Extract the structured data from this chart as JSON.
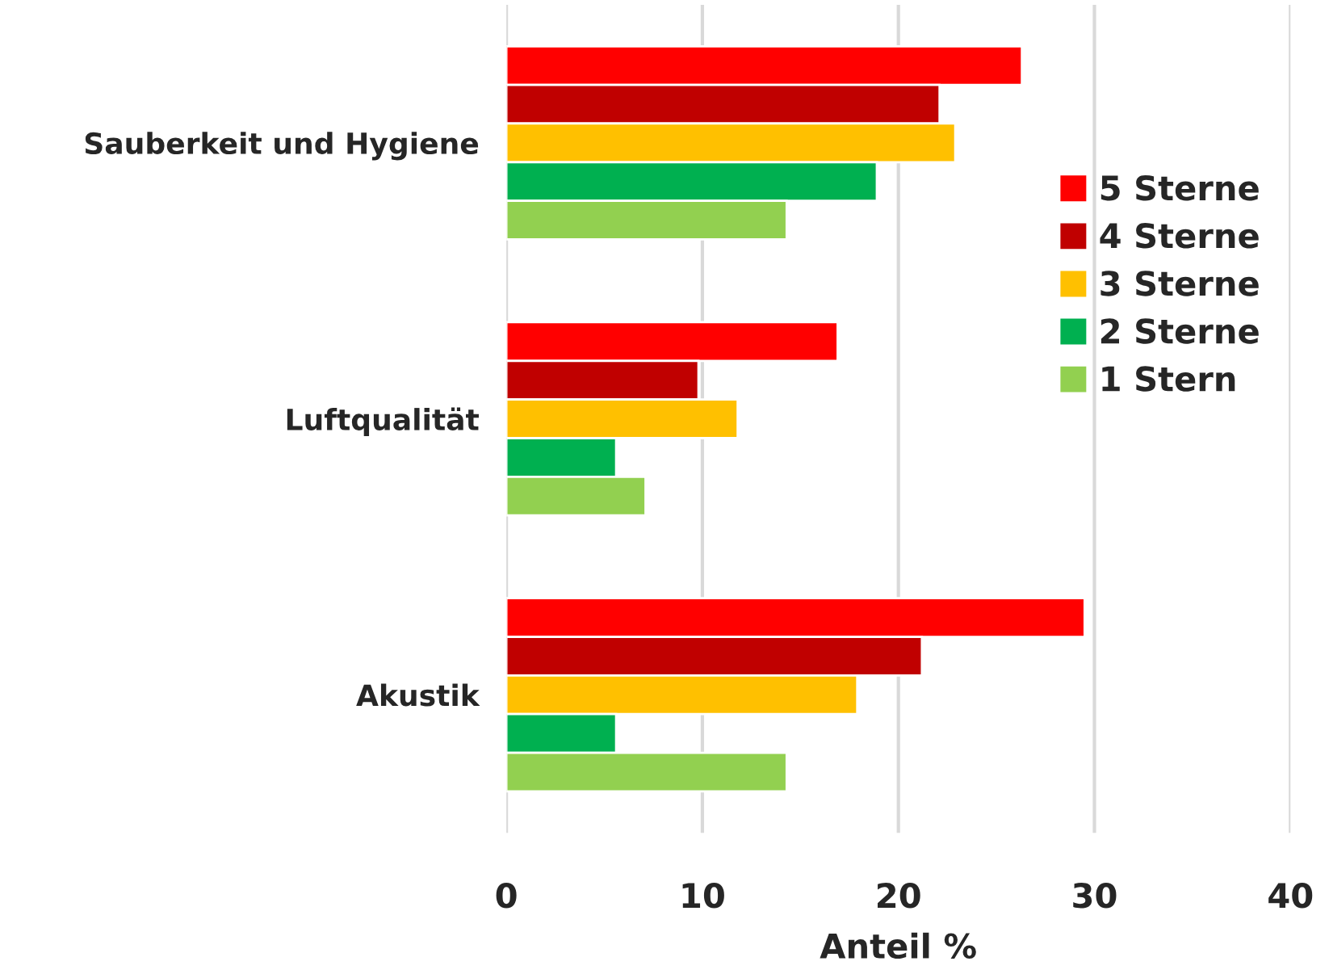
{
  "chart_data": {
    "type": "bar",
    "orientation": "horizontal",
    "xlabel": "Anteil %",
    "categories": [
      "Sauberkeit und Hygiene",
      "Luftqualität",
      "Akustik"
    ],
    "series": [
      {
        "name": "5 Sterne",
        "color": "#ff0000",
        "values": [
          26.3,
          16.9,
          29.5
        ]
      },
      {
        "name": "4 Sterne",
        "color": "#c00000",
        "values": [
          22.1,
          9.8,
          21.2
        ]
      },
      {
        "name": "3 Sterne",
        "color": "#ffc000",
        "values": [
          22.9,
          11.8,
          17.9
        ]
      },
      {
        "name": "2 Sterne",
        "color": "#00b050",
        "values": [
          18.9,
          5.6,
          5.6
        ]
      },
      {
        "name": "1 Stern",
        "color": "#92d050",
        "values": [
          14.3,
          7.1,
          14.3
        ]
      }
    ],
    "xlim": [
      0,
      40
    ],
    "xticks": [
      0,
      10,
      20,
      30,
      40
    ],
    "grid": "x",
    "legend": "right"
  }
}
